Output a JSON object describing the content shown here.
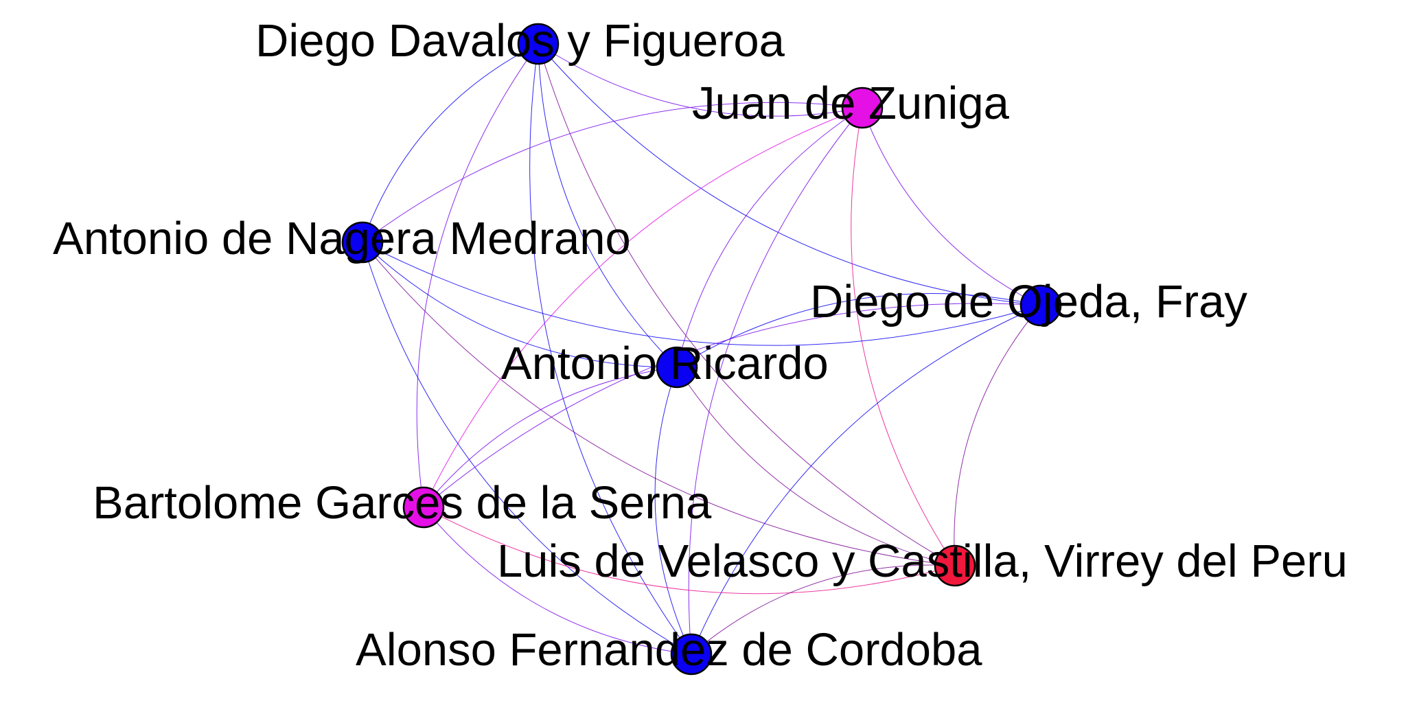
{
  "graph": {
    "nodes": [
      {
        "id": "diego_davalos",
        "label": "Diego Davalos y Figueroa",
        "color": "#0a00f2"
      },
      {
        "id": "juan_zuniga",
        "label": "Juan de Zuniga",
        "color": "#e410e6"
      },
      {
        "id": "antonio_nagera",
        "label": "Antonio de Nagera Medrano",
        "color": "#0a00f2"
      },
      {
        "id": "diego_ojeda",
        "label": "Diego de Ojeda, Fray",
        "color": "#0a00f2"
      },
      {
        "id": "antonio_ricardo",
        "label": "Antonio Ricardo",
        "color": "#0a00f2"
      },
      {
        "id": "bartolome_garces",
        "label": "Bartolome Garces de la Serna",
        "color": "#e410e6"
      },
      {
        "id": "luis_velasco",
        "label": "Luis de Velasco y Castilla, Virrey del Peru",
        "color": "#f0183c"
      },
      {
        "id": "alonso_fernandez",
        "label": "Alonso Fernandez de Cordoba",
        "color": "#0a00f2"
      }
    ],
    "edges": [
      [
        "diego_davalos",
        "juan_zuniga"
      ],
      [
        "diego_davalos",
        "antonio_nagera"
      ],
      [
        "diego_davalos",
        "diego_ojeda"
      ],
      [
        "diego_davalos",
        "antonio_ricardo"
      ],
      [
        "diego_davalos",
        "bartolome_garces"
      ],
      [
        "diego_davalos",
        "luis_velasco"
      ],
      [
        "diego_davalos",
        "alonso_fernandez"
      ],
      [
        "juan_zuniga",
        "antonio_nagera"
      ],
      [
        "juan_zuniga",
        "diego_ojeda"
      ],
      [
        "juan_zuniga",
        "antonio_ricardo"
      ],
      [
        "juan_zuniga",
        "bartolome_garces"
      ],
      [
        "juan_zuniga",
        "luis_velasco"
      ],
      [
        "juan_zuniga",
        "alonso_fernandez"
      ],
      [
        "antonio_nagera",
        "diego_ojeda"
      ],
      [
        "antonio_nagera",
        "antonio_ricardo"
      ],
      [
        "antonio_nagera",
        "luis_velasco"
      ],
      [
        "antonio_nagera",
        "alonso_fernandez"
      ],
      [
        "diego_ojeda",
        "antonio_ricardo"
      ],
      [
        "diego_ojeda",
        "bartolome_garces"
      ],
      [
        "diego_ojeda",
        "luis_velasco"
      ],
      [
        "diego_ojeda",
        "alonso_fernandez"
      ],
      [
        "antonio_ricardo",
        "bartolome_garces"
      ],
      [
        "antonio_ricardo",
        "luis_velasco"
      ],
      [
        "antonio_ricardo",
        "alonso_fernandez"
      ],
      [
        "bartolome_garces",
        "luis_velasco"
      ],
      [
        "bartolome_garces",
        "alonso_fernandez"
      ],
      [
        "luis_velasco",
        "alonso_fernandez"
      ]
    ]
  }
}
